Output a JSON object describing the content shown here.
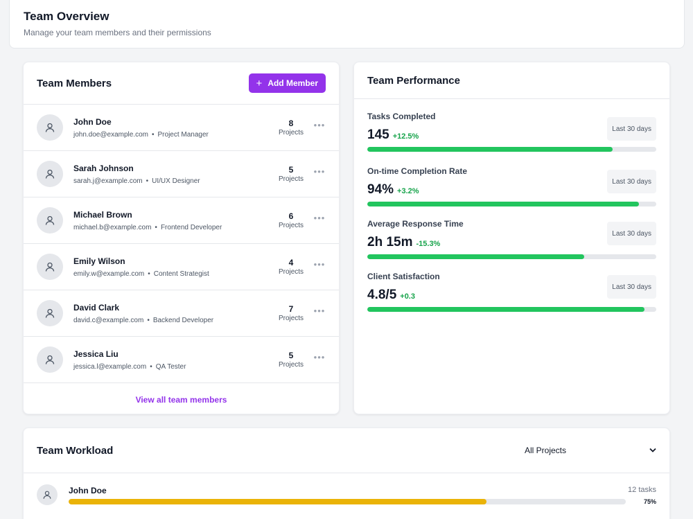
{
  "header": {
    "title": "Team Overview",
    "subtitle": "Manage your team members and their permissions"
  },
  "members_card": {
    "title": "Team Members",
    "add_button": "Add Member",
    "add_icon": "+",
    "projects_label": "Projects",
    "view_all": "View all team members",
    "members": [
      {
        "name": "John Doe",
        "email": "john.doe@example.com",
        "role": "Project Manager",
        "projects": "8"
      },
      {
        "name": "Sarah Johnson",
        "email": "sarah.j@example.com",
        "role": "UI/UX Designer",
        "projects": "5"
      },
      {
        "name": "Michael Brown",
        "email": "michael.b@example.com",
        "role": "Frontend Developer",
        "projects": "6"
      },
      {
        "name": "Emily Wilson",
        "email": "emily.w@example.com",
        "role": "Content Strategist",
        "projects": "4"
      },
      {
        "name": "David Clark",
        "email": "david.c@example.com",
        "role": "Backend Developer",
        "projects": "7"
      },
      {
        "name": "Jessica Liu",
        "email": "jessica.l@example.com",
        "role": "QA Tester",
        "projects": "5"
      }
    ]
  },
  "performance_card": {
    "title": "Team Performance",
    "metrics": [
      {
        "label": "Tasks Completed",
        "value": "145",
        "change": "+12.5%",
        "period": "Last 30 days",
        "progress": 0.85
      },
      {
        "label": "On-time Completion Rate",
        "value": "94%",
        "change": "+3.2%",
        "period": "Last 30 days",
        "progress": 0.94
      },
      {
        "label": "Average Response Time",
        "value": "2h 15m",
        "change": "-15.3%",
        "period": "Last 30 days",
        "progress": 0.75
      },
      {
        "label": "Client Satisfaction",
        "value": "4.8/5",
        "change": "+0.3",
        "period": "Last 30 days",
        "progress": 0.96
      }
    ]
  },
  "workload_card": {
    "title": "Team Workload",
    "filter_value": "All Projects",
    "rows": [
      {
        "name": "John Doe",
        "tasks": "12 tasks",
        "percent": "75%",
        "progress": 0.75
      }
    ]
  },
  "colors": {
    "accent": "#9333ea",
    "success": "#22c55e",
    "warning": "#eab308",
    "track": "#e5e7eb"
  }
}
